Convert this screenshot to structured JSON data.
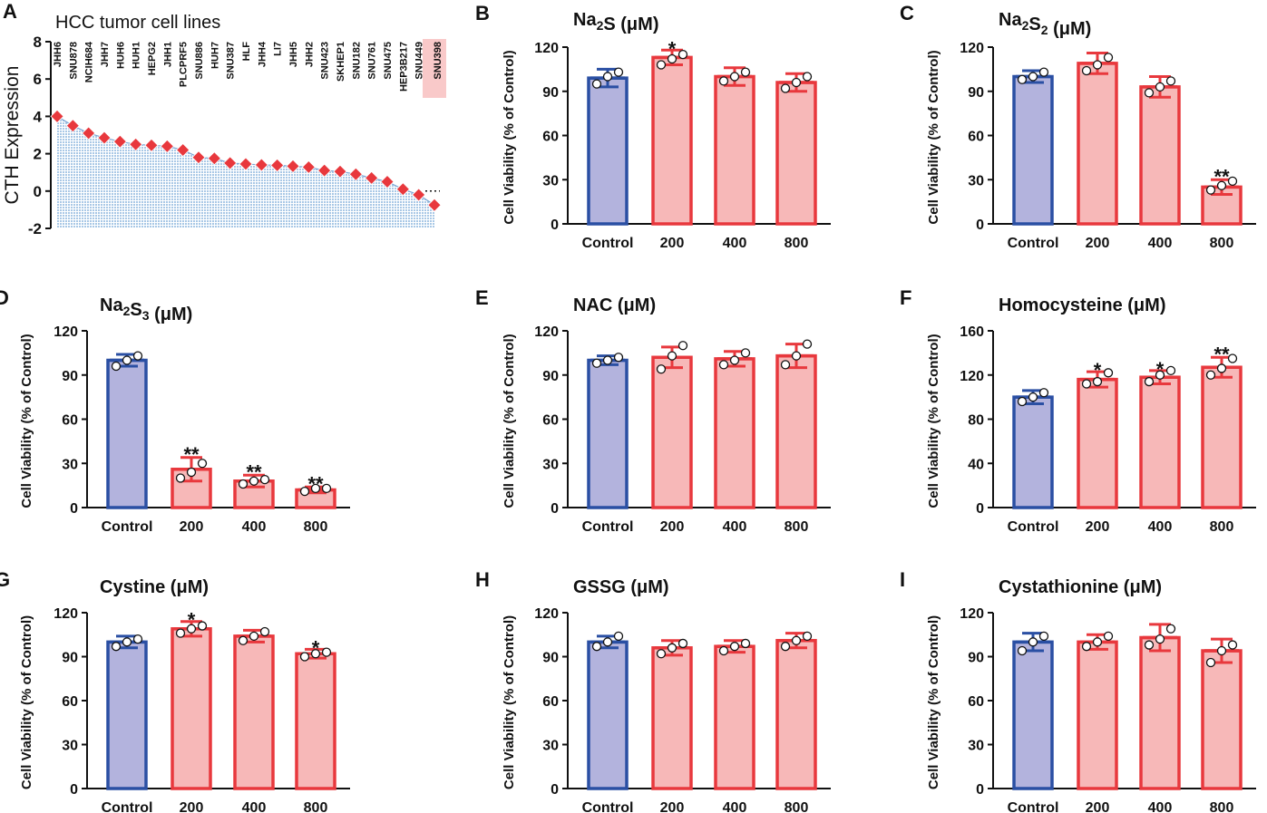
{
  "colors": {
    "control_fill": "#b3b3dd",
    "control_edge": "#2a4fa3",
    "treat_fill": "#f7b8b8",
    "treat_edge": "#e8383d",
    "diamond": "#e8383d",
    "area_fill": "#a9c8e6",
    "highlight": "#f9c9c9"
  },
  "chart_data": [
    {
      "panel": "A",
      "type": "area",
      "title": "HCC tumor cell lines",
      "ylabel": "CTH Expression",
      "ylim": [
        -2,
        8
      ],
      "yticks": [
        "8",
        "6",
        "4",
        "2",
        "0",
        "-2"
      ],
      "highlight": "SNU398",
      "categories": [
        "JHH6",
        "SNU878",
        "NCIH684",
        "JHH7",
        "HUH6",
        "HUH1",
        "HEPG2",
        "JHH1",
        "PLCPRF5",
        "SNU886",
        "HUH7",
        "SNU387",
        "HLF",
        "JHH4",
        "LI7",
        "JHH5",
        "JHH2",
        "SNU423",
        "SKHEP1",
        "SNU182",
        "SNU761",
        "SNU475",
        "HEP3B217",
        "SNU449",
        "SNU398"
      ],
      "values": [
        4.0,
        3.5,
        3.1,
        2.85,
        2.65,
        2.5,
        2.45,
        2.4,
        2.2,
        1.8,
        1.75,
        1.5,
        1.45,
        1.4,
        1.38,
        1.33,
        1.28,
        1.1,
        1.05,
        0.9,
        0.7,
        0.5,
        0.1,
        -0.2,
        -0.75
      ]
    },
    {
      "panel": "B",
      "type": "bar",
      "title": "Na₂S (μM)",
      "ylabel": "Cell Viability (% of Control)",
      "ylim": [
        0,
        120
      ],
      "yticks": [
        "120",
        "90",
        "60",
        "30",
        "0"
      ],
      "categories": [
        "Control",
        "200",
        "400",
        "800"
      ],
      "values": [
        99,
        113,
        100,
        96
      ],
      "errors": [
        6,
        5,
        6,
        6
      ],
      "points": [
        [
          95,
          100,
          103
        ],
        [
          108,
          112,
          115
        ],
        [
          97,
          100,
          103
        ],
        [
          92,
          96,
          100
        ]
      ],
      "sig": [
        "",
        "*",
        "",
        ""
      ]
    },
    {
      "panel": "C",
      "type": "bar",
      "title": "Na₂S₂ (μM)",
      "ylabel": "Cell Viability (% of Control)",
      "ylim": [
        0,
        120
      ],
      "yticks": [
        "120",
        "90",
        "60",
        "30",
        "0"
      ],
      "categories": [
        "Control",
        "200",
        "400",
        "800"
      ],
      "values": [
        100,
        109,
        93,
        25
      ],
      "errors": [
        4,
        7,
        7,
        5
      ],
      "points": [
        [
          98,
          100,
          103
        ],
        [
          104,
          108,
          113
        ],
        [
          89,
          93,
          97
        ],
        [
          23,
          26,
          29
        ]
      ],
      "sig": [
        "",
        "",
        "",
        "**"
      ]
    },
    {
      "panel": "D",
      "type": "bar",
      "title": "Na₂S₃ (μM)",
      "ylabel": "Cell Viability (% of Control)",
      "ylim": [
        0,
        120
      ],
      "yticks": [
        "120",
        "90",
        "60",
        "30",
        "0"
      ],
      "categories": [
        "Control",
        "200",
        "400",
        "800"
      ],
      "values": [
        100,
        26,
        18,
        12
      ],
      "errors": [
        4,
        8,
        4,
        2
      ],
      "points": [
        [
          96,
          100,
          103
        ],
        [
          20,
          24,
          30
        ],
        [
          16,
          18,
          19
        ],
        [
          11,
          13,
          13
        ]
      ],
      "sig": [
        "",
        "**",
        "**",
        "**"
      ]
    },
    {
      "panel": "E",
      "type": "bar",
      "title": "NAC (μM)",
      "ylabel": "Cell Viability (% of Control)",
      "ylim": [
        0,
        120
      ],
      "yticks": [
        "120",
        "90",
        "60",
        "30",
        "0"
      ],
      "categories": [
        "Control",
        "200",
        "400",
        "800"
      ],
      "values": [
        100,
        102,
        101,
        103
      ],
      "errors": [
        3,
        7,
        5,
        8
      ],
      "points": [
        [
          98,
          100,
          102
        ],
        [
          94,
          103,
          110
        ],
        [
          97,
          100,
          105
        ],
        [
          97,
          103,
          111
        ]
      ],
      "sig": [
        "",
        "",
        "",
        ""
      ]
    },
    {
      "panel": "F",
      "type": "bar",
      "title": "Homocysteine (μM)",
      "ylabel": "Cell Viability (% of Control)",
      "ylim": [
        0,
        160
      ],
      "yticks": [
        "160",
        "120",
        "80",
        "40",
        "0"
      ],
      "categories": [
        "Control",
        "200",
        "400",
        "800"
      ],
      "values": [
        100,
        116,
        118,
        127
      ],
      "errors": [
        6,
        7,
        6,
        9
      ],
      "points": [
        [
          96,
          100,
          104
        ],
        [
          112,
          114,
          122
        ],
        [
          114,
          120,
          124
        ],
        [
          120,
          126,
          135
        ]
      ],
      "sig": [
        "",
        "*",
        "*",
        "**"
      ]
    },
    {
      "panel": "G",
      "type": "bar",
      "title": "Cystine (μM)",
      "ylabel": "Cell Viability (% of Control)",
      "ylim": [
        0,
        120
      ],
      "yticks": [
        "120",
        "90",
        "60",
        "30",
        "0"
      ],
      "categories": [
        "Control",
        "200",
        "400",
        "800"
      ],
      "values": [
        100,
        109,
        104,
        92
      ],
      "errors": [
        4,
        5,
        4,
        3
      ],
      "points": [
        [
          97,
          100,
          102
        ],
        [
          106,
          109,
          111
        ],
        [
          101,
          104,
          107
        ],
        [
          90,
          92,
          93
        ]
      ],
      "sig": [
        "",
        "*",
        "",
        "*"
      ]
    },
    {
      "panel": "H",
      "type": "bar",
      "title": "GSSG (μM)",
      "ylabel": "Cell Viability (% of Control)",
      "ylim": [
        0,
        120
      ],
      "yticks": [
        "120",
        "90",
        "60",
        "30",
        "0"
      ],
      "categories": [
        "Control",
        "200",
        "400",
        "800"
      ],
      "values": [
        100,
        96,
        97,
        101
      ],
      "errors": [
        4,
        5,
        4,
        5
      ],
      "points": [
        [
          97,
          100,
          104
        ],
        [
          92,
          96,
          99
        ],
        [
          94,
          97,
          99
        ],
        [
          97,
          101,
          104
        ]
      ],
      "sig": [
        "",
        "",
        "",
        ""
      ]
    },
    {
      "panel": "I",
      "type": "bar",
      "title": "Cystathionine (μM)",
      "ylabel": "Cell Viability (% of Control)",
      "ylim": [
        0,
        120
      ],
      "yticks": [
        "120",
        "90",
        "60",
        "30",
        "0"
      ],
      "categories": [
        "Control",
        "200",
        "400",
        "800"
      ],
      "values": [
        100,
        100,
        103,
        94
      ],
      "errors": [
        6,
        5,
        9,
        8
      ],
      "points": [
        [
          94,
          100,
          104
        ],
        [
          97,
          100,
          104
        ],
        [
          98,
          102,
          109
        ],
        [
          86,
          94,
          98
        ]
      ],
      "sig": [
        "",
        "",
        "",
        ""
      ]
    }
  ]
}
